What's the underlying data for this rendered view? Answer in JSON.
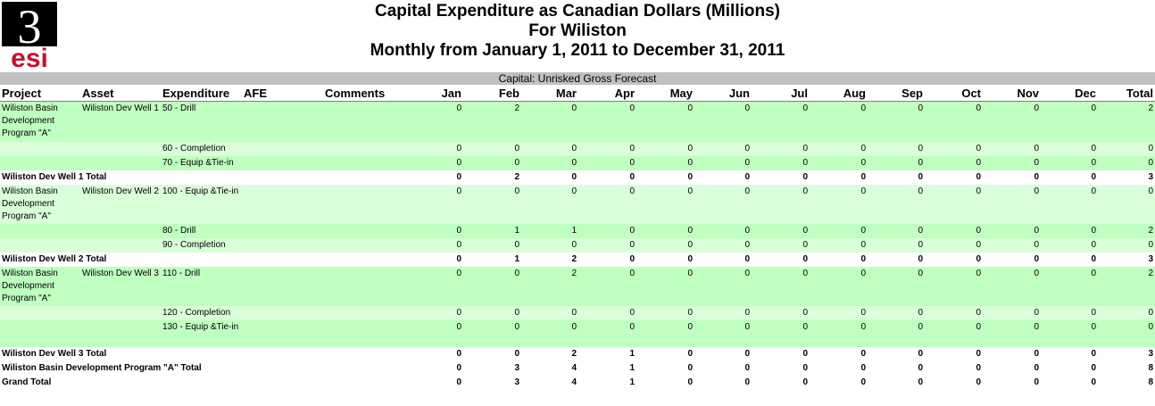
{
  "logo": {
    "numeral": "3",
    "letters": "esi"
  },
  "title": {
    "line1": "Capital Expenditure as Canadian Dollars (Millions)",
    "line2": "For Wiliston",
    "line3": "Monthly from January 1, 2011 to December 31, 2011"
  },
  "banner": "Capital: Unrisked Gross Forecast",
  "columns": [
    "Project",
    "Asset",
    "Expenditure",
    "AFE",
    "Comments",
    "Jan",
    "Feb",
    "Mar",
    "Apr",
    "May",
    "Jun",
    "Jul",
    "Aug",
    "Sep",
    "Oct",
    "Nov",
    "Dec",
    "Total"
  ],
  "rows": [
    {
      "kind": "detail",
      "shade": "g1",
      "project": "Wiliston Basin Development Program \"A\"",
      "asset": "Wiliston Dev Well 1",
      "expenditure": "50 - Drill",
      "values": [
        "0",
        "2",
        "0",
        "0",
        "0",
        "0",
        "0",
        "0",
        "0",
        "0",
        "0",
        "0",
        "2"
      ]
    },
    {
      "kind": "detail",
      "shade": "g2",
      "project": "",
      "asset": "",
      "expenditure": "60 - Completion",
      "values": [
        "0",
        "0",
        "0",
        "0",
        "0",
        "0",
        "0",
        "0",
        "0",
        "0",
        "0",
        "0",
        "0"
      ]
    },
    {
      "kind": "detail",
      "shade": "g1",
      "project": "",
      "asset": "",
      "expenditure": "70 - Equip &Tie-in",
      "values": [
        "0",
        "0",
        "0",
        "0",
        "0",
        "0",
        "0",
        "0",
        "0",
        "0",
        "0",
        "0",
        "0"
      ]
    },
    {
      "kind": "total",
      "label": "Wiliston Dev Well 1 Total",
      "values": [
        "0",
        "2",
        "0",
        "0",
        "0",
        "0",
        "0",
        "0",
        "0",
        "0",
        "0",
        "0",
        "3"
      ]
    },
    {
      "kind": "detail",
      "shade": "g2",
      "project": "Wiliston Basin Development Program \"A\"",
      "asset": "Wiliston Dev Well 2",
      "expenditure": "100 - Equip &Tie-in",
      "values": [
        "0",
        "0",
        "0",
        "0",
        "0",
        "0",
        "0",
        "0",
        "0",
        "0",
        "0",
        "0",
        "0"
      ]
    },
    {
      "kind": "detail",
      "shade": "g1",
      "project": "",
      "asset": "",
      "expenditure": "80 - Drill",
      "values": [
        "0",
        "1",
        "1",
        "0",
        "0",
        "0",
        "0",
        "0",
        "0",
        "0",
        "0",
        "0",
        "2"
      ]
    },
    {
      "kind": "detail",
      "shade": "g2",
      "project": "",
      "asset": "",
      "expenditure": "90 - Completion",
      "values": [
        "0",
        "0",
        "0",
        "0",
        "0",
        "0",
        "0",
        "0",
        "0",
        "0",
        "0",
        "0",
        "0"
      ]
    },
    {
      "kind": "total",
      "label": "Wiliston Dev Well 2 Total",
      "values": [
        "0",
        "1",
        "2",
        "0",
        "0",
        "0",
        "0",
        "0",
        "0",
        "0",
        "0",
        "0",
        "3"
      ]
    },
    {
      "kind": "detail",
      "shade": "g1",
      "project": "Wiliston Basin Development Program \"A\"",
      "asset": "Wiliston Dev Well 3",
      "expenditure": "110 - Drill",
      "values": [
        "0",
        "0",
        "2",
        "0",
        "0",
        "0",
        "0",
        "0",
        "0",
        "0",
        "0",
        "0",
        "2"
      ]
    },
    {
      "kind": "detail",
      "shade": "g2",
      "project": "",
      "asset": "",
      "expenditure": "120 - Completion",
      "values": [
        "0",
        "0",
        "0",
        "0",
        "0",
        "0",
        "0",
        "0",
        "0",
        "0",
        "0",
        "0",
        "0"
      ]
    },
    {
      "kind": "detail",
      "shade": "g1",
      "project": "",
      "asset": "",
      "expenditure": "130 - Equip &Tie-in",
      "values": [
        "0",
        "0",
        "0",
        "0",
        "0",
        "0",
        "0",
        "0",
        "0",
        "0",
        "0",
        "0",
        "0"
      ]
    },
    {
      "kind": "total",
      "label": "Wiliston Dev Well 3 Total",
      "values": [
        "0",
        "0",
        "2",
        "1",
        "0",
        "0",
        "0",
        "0",
        "0",
        "0",
        "0",
        "0",
        "3"
      ]
    },
    {
      "kind": "total",
      "label": "Wiliston Basin Development Program \"A\" Total",
      "values": [
        "0",
        "3",
        "4",
        "1",
        "0",
        "0",
        "0",
        "0",
        "0",
        "0",
        "0",
        "0",
        "8"
      ]
    },
    {
      "kind": "total",
      "label": "Grand Total",
      "values": [
        "0",
        "3",
        "4",
        "1",
        "0",
        "0",
        "0",
        "0",
        "0",
        "0",
        "0",
        "0",
        "8"
      ]
    }
  ],
  "colors": {
    "banner": "#c0c0c0",
    "shade_dark": "#bfffbf",
    "shade_light": "#d9ffd9",
    "logo_red": "#c8102e"
  }
}
